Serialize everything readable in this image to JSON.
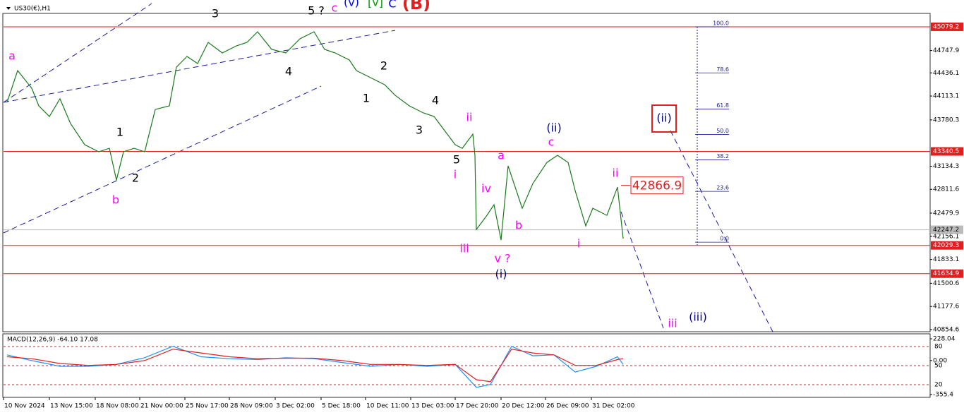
{
  "chart_data": [
    {
      "type": "line",
      "title": "US30(€),H1",
      "x": [
        5,
        20,
        40,
        50,
        65,
        80,
        95,
        115,
        135,
        150,
        160,
        170,
        185,
        200,
        215,
        235,
        245,
        260,
        275,
        290,
        310,
        330,
        345,
        360,
        380,
        400,
        420,
        440,
        455,
        470,
        490,
        500,
        520,
        540,
        555,
        575,
        595,
        610,
        625,
        640,
        650,
        665,
        668,
        670,
        685,
        695,
        705,
        715,
        735,
        750,
        770,
        785,
        800,
        810,
        825,
        835,
        855,
        870,
        878
      ],
      "series": [
        {
          "name": "US30",
          "color": "#1a7a1a",
          "values": [
            44025,
            44468,
            44222,
            43976,
            43828,
            44074,
            43729,
            43434,
            43335,
            43384,
            42941,
            43335,
            43384,
            43335,
            43926,
            43976,
            44517,
            44665,
            44567,
            44862,
            44714,
            44813,
            44862,
            45010,
            44764,
            44714,
            44911,
            45010,
            44764,
            44714,
            44616,
            44468,
            44370,
            44271,
            44123,
            43976,
            43877,
            43828,
            43631,
            43434,
            43384,
            43581,
            43286,
            42252,
            42449,
            42597,
            42104,
            43138,
            42547,
            42892,
            43187,
            43286,
            43187,
            42793,
            42301,
            42547,
            42449,
            42843,
            42124
          ]
        }
      ],
      "xlim": [
        0,
        1313
      ],
      "ylim": [
        40825,
        45256
      ],
      "xticks": [
        {
          "value": 0,
          "label": "10 Nov 2024"
        },
        {
          "value": 65,
          "label": "13 Nov 15:00"
        },
        {
          "value": 130,
          "label": "18 Nov 08:00"
        },
        {
          "value": 193,
          "label": "21 Nov 00:00"
        },
        {
          "value": 257,
          "label": "25 Nov 17:00"
        },
        {
          "value": 320,
          "label": "28 Nov 09:00"
        },
        {
          "value": 385,
          "label": "3 Dec 02:00"
        },
        {
          "value": 450,
          "label": "5 Dec 18:00"
        },
        {
          "value": 513,
          "label": "10 Dec 11:00"
        },
        {
          "value": 577,
          "label": "13 Dec 03:00"
        },
        {
          "value": 640,
          "label": "17 Dec 20:00"
        },
        {
          "value": 705,
          "label": "20 Dec 12:00"
        },
        {
          "value": 768,
          "label": "26 Dec 09:00"
        },
        {
          "value": 833,
          "label": "31 Dec 02:00"
        }
      ],
      "yticks": [
        44747.9,
        44436.1,
        44113.1,
        43780.3,
        43134.3,
        42811.6,
        42479.9,
        42156.1,
        41833.1,
        41500.6,
        41177.6,
        40854.6
      ],
      "hlines": [
        {
          "value": 45079.2,
          "color": "#e02020"
        },
        {
          "value": 43340.5,
          "color": "#e02020"
        },
        {
          "value": 42029.3,
          "color": "#e02020"
        },
        {
          "value": 41634.9,
          "color": "#e02020"
        },
        {
          "value": 42247.2,
          "color": "#bbbbbb"
        }
      ],
      "fib": {
        "range": [
          42074,
          45079
        ],
        "levels": [
          {
            "value": 100,
            "label": "100.0"
          },
          78.6,
          61.8,
          {
            "value": 50,
            "label": "50.0"
          },
          38.2,
          23.6,
          {
            "value": 0,
            "label": "0.0"
          }
        ]
      },
      "price_callout": 42866.9,
      "annotations": [
        {
          "text": "a",
          "color": "#ff00ff"
        },
        {
          "text": "b",
          "color": "#ff00ff"
        },
        {
          "text": "1",
          "color": "#000"
        },
        {
          "text": "2",
          "color": "#000"
        },
        {
          "text": "3",
          "color": "#000"
        },
        {
          "text": "4",
          "color": "#000"
        },
        {
          "text": "5 ?",
          "color": "#000"
        },
        {
          "text": "c",
          "color": "#ff00ff"
        },
        {
          "text": "(v)",
          "color": "#0000ff"
        },
        {
          "text": "[v]",
          "color": "#00a000"
        },
        {
          "text": "C",
          "color": "#0000ff"
        },
        {
          "text": "(B)",
          "color": "#e02020"
        },
        {
          "text": "2",
          "color": "#000"
        },
        {
          "text": "1",
          "color": "#000"
        },
        {
          "text": "4",
          "color": "#000"
        },
        {
          "text": "3",
          "color": "#000"
        },
        {
          "text": "5",
          "color": "#000"
        },
        {
          "text": "ii",
          "color": "#ff00ff"
        },
        {
          "text": "i",
          "color": "#ff00ff"
        },
        {
          "text": "iii",
          "color": "#ff00ff"
        },
        {
          "text": "iv",
          "color": "#ff00ff"
        },
        {
          "text": "a",
          "color": "#ff00ff"
        },
        {
          "text": "b",
          "color": "#ff00ff"
        },
        {
          "text": "v ?",
          "color": "#ff00ff"
        },
        {
          "text": "(i)",
          "color": "#000080"
        },
        {
          "text": "(ii)",
          "color": "#000080"
        },
        {
          "text": "c",
          "color": "#ff00ff"
        },
        {
          "text": "ii",
          "color": "#ff00ff"
        },
        {
          "text": "i",
          "color": "#ff00ff"
        },
        {
          "text": "iii",
          "color": "#ff00ff"
        },
        {
          "text": "(iii)",
          "color": "#000080"
        },
        {
          "text": "(ii)",
          "color": "#000080"
        }
      ]
    },
    {
      "type": "line",
      "title": "MACD(12,26,9) -64.10 17.08",
      "x": [
        5,
        40,
        80,
        120,
        160,
        200,
        240,
        280,
        320,
        360,
        400,
        440,
        480,
        520,
        560,
        600,
        640,
        670,
        690,
        720,
        750,
        780,
        810,
        840,
        870,
        878
      ],
      "series": [
        {
          "name": "MACD",
          "color": "#1e90ff",
          "values": [
            60,
            0,
            -60,
            -60,
            -40,
            30,
            150,
            40,
            20,
            10,
            30,
            20,
            -20,
            -60,
            -40,
            -60,
            -40,
            -280,
            -250,
            150,
            50,
            60,
            -120,
            -60,
            40,
            -40
          ]
        },
        {
          "name": "Signal",
          "color": "#e02020",
          "values": [
            40,
            20,
            -30,
            -50,
            -40,
            0,
            120,
            80,
            40,
            20,
            25,
            25,
            0,
            -40,
            -40,
            -50,
            -40,
            -200,
            -220,
            120,
            80,
            60,
            -50,
            -50,
            10,
            20
          ]
        }
      ],
      "xlim": [
        0,
        1313
      ],
      "ylim": [
        -385,
        280
      ],
      "yticks": [
        228.04,
        {
          "value": 0,
          "label": "0.00"
        },
        -355.4
      ],
      "y2lim": [
        0,
        100
      ],
      "y2ticks": [
        80,
        50,
        20
      ],
      "grid": true
    }
  ]
}
